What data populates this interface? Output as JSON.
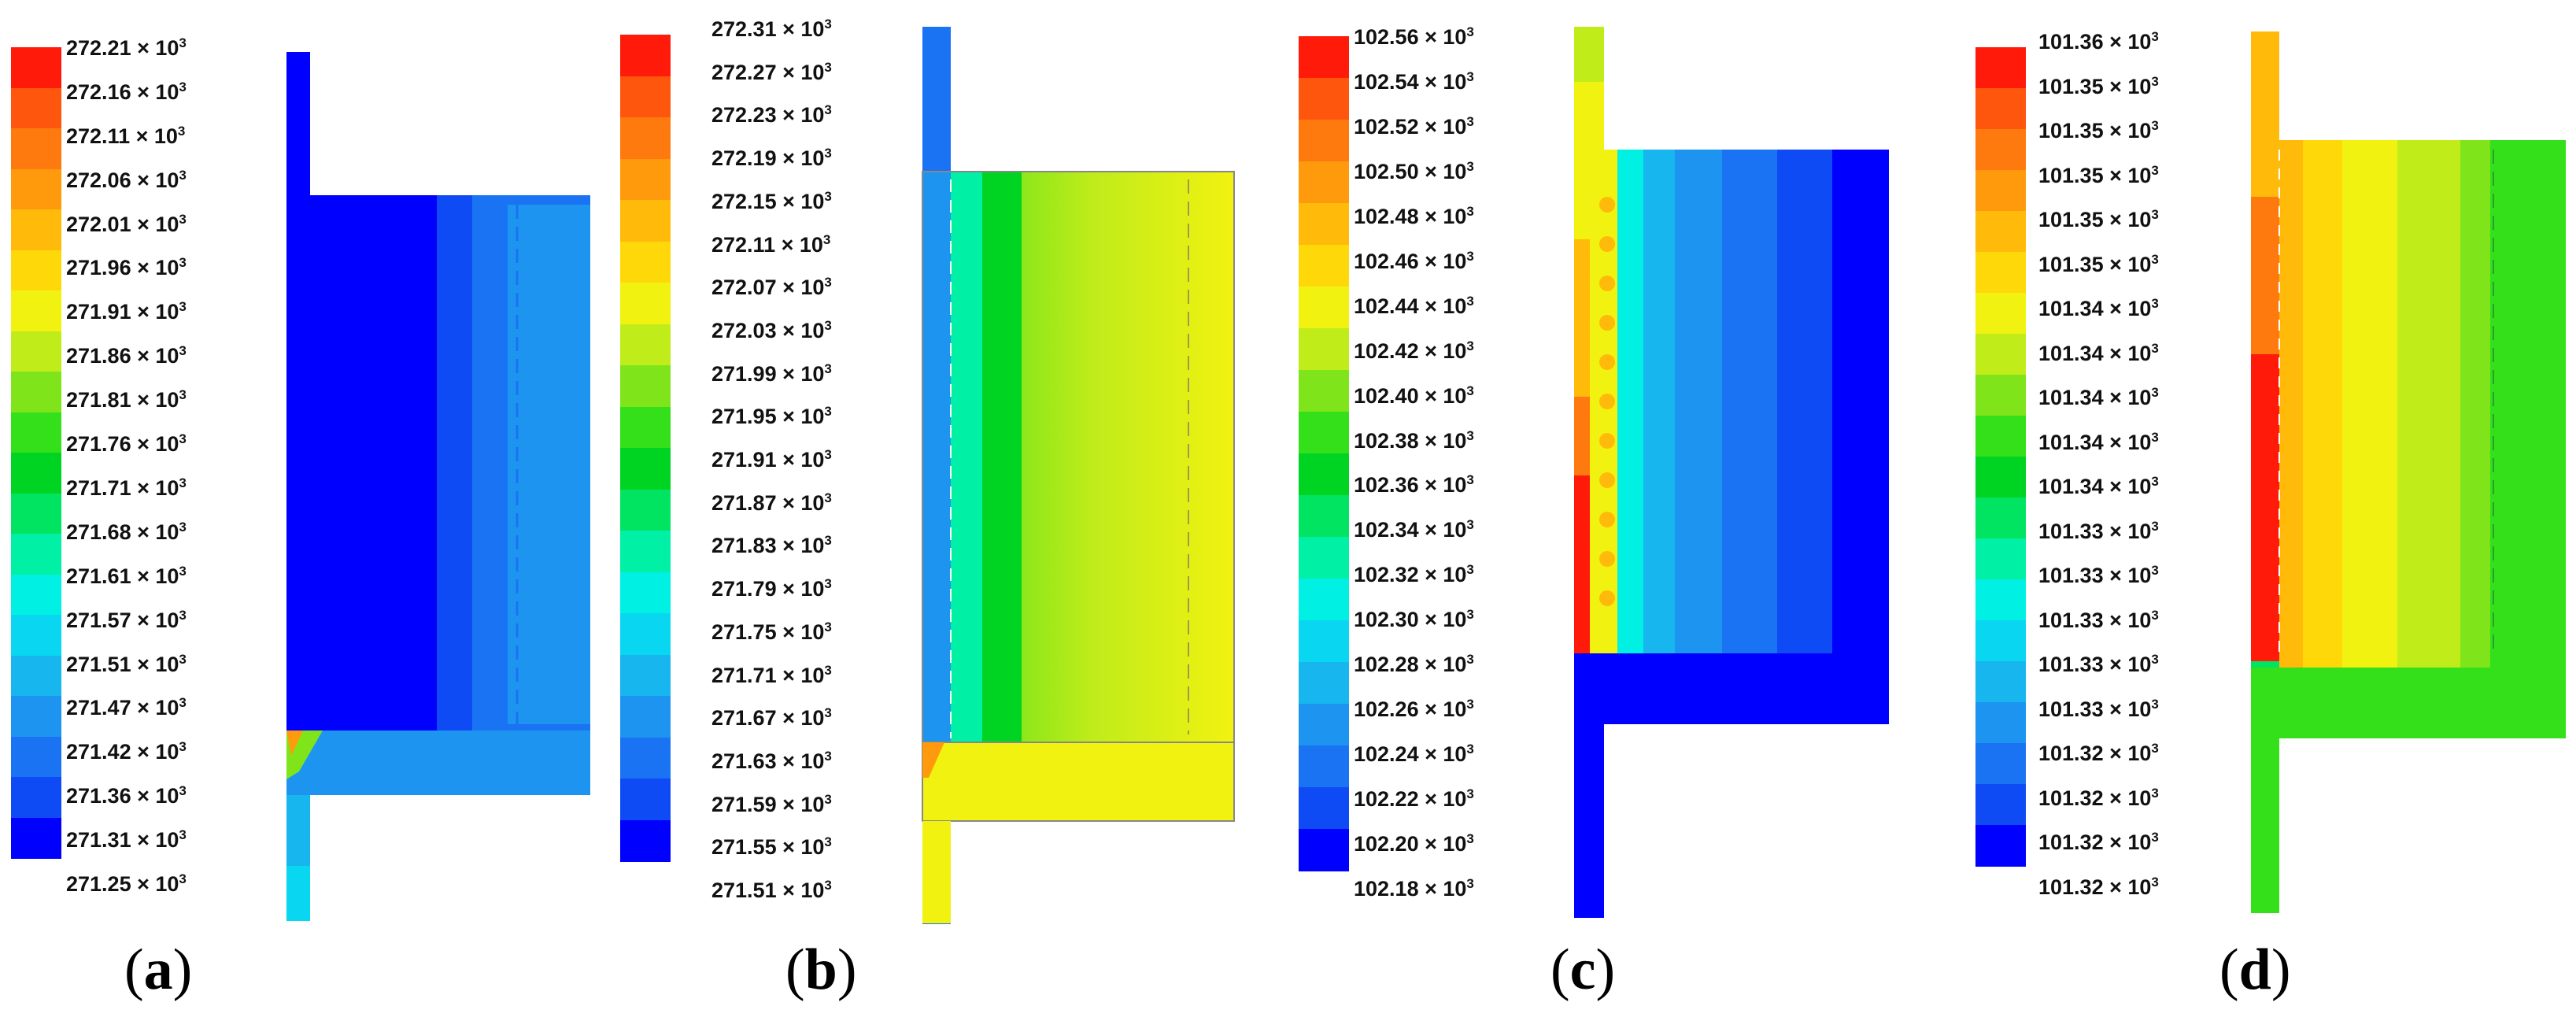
{
  "colormap": [
    "#0000ff",
    "#0f4bf5",
    "#1a73f2",
    "#1d95f0",
    "#17b6ef",
    "#09d7f1",
    "#00f0e4",
    "#00f0a6",
    "#00e462",
    "#00d422",
    "#33e01a",
    "#7fe51a",
    "#c0ec1a",
    "#f2f210",
    "#ffd80a",
    "#ffba0a",
    "#ff9a0c",
    "#ff7a0e",
    "#ff560e",
    "#ff1a0a"
  ],
  "panels": [
    {
      "id": "a",
      "label": "a",
      "legend": {
        "exponent": "3",
        "ticks": [
          "272.21",
          "272.16",
          "272.11",
          "272.06",
          "272.01",
          "271.96",
          "271.91",
          "271.86",
          "271.81",
          "271.76",
          "271.71",
          "271.68",
          "271.61",
          "271.57",
          "271.51",
          "271.47",
          "271.42",
          "271.36",
          "271.31",
          "271.25"
        ]
      }
    },
    {
      "id": "b",
      "label": "b",
      "legend": {
        "exponent": "3",
        "ticks": [
          "272.31",
          "272.27",
          "272.23",
          "272.19",
          "272.15",
          "272.11",
          "272.07",
          "272.03",
          "271.99",
          "271.95",
          "271.91",
          "271.87",
          "271.83",
          "271.79",
          "271.75",
          "271.71",
          "271.67",
          "271.63",
          "271.59",
          "271.55",
          "271.51"
        ]
      }
    },
    {
      "id": "c",
      "label": "c",
      "legend": {
        "exponent": "3",
        "ticks": [
          "102.56",
          "102.54",
          "102.52",
          "102.50",
          "102.48",
          "102.46",
          "102.44",
          "102.42",
          "102.40",
          "102.38",
          "102.36",
          "102.34",
          "102.32",
          "102.30",
          "102.28",
          "102.26",
          "102.24",
          "102.22",
          "102.20",
          "102.18"
        ]
      }
    },
    {
      "id": "d",
      "label": "d",
      "legend": {
        "exponent": "3",
        "ticks": [
          "101.36",
          "101.35",
          "101.35",
          "101.35",
          "101.35",
          "101.35",
          "101.34",
          "101.34",
          "101.34",
          "101.34",
          "101.34",
          "101.33",
          "101.33",
          "101.33",
          "101.33",
          "101.33",
          "101.32",
          "101.32",
          "101.32",
          "101.32"
        ]
      }
    }
  ]
}
